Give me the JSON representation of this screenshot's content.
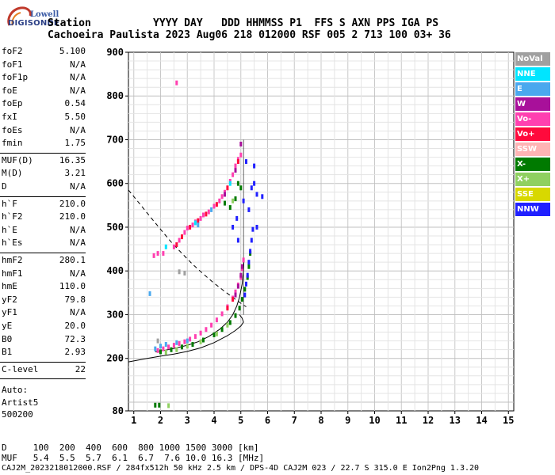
{
  "header": {
    "brand_top": "Lowell",
    "brand_bottom": "DIGISONDE",
    "line1": "Station          YYYY DAY   DDD HHMMSS P1  FFS S AXN PPS IGA PS",
    "line2": "Cachoeira Paulista 2023 Aug06 218 012000 RSF 005 2 713 100 03+ 36"
  },
  "params": {
    "group1": [
      {
        "k": "foF2",
        "v": "5.100"
      },
      {
        "k": "foF1",
        "v": "N/A"
      },
      {
        "k": "foF1p",
        "v": "N/A"
      },
      {
        "k": "foE",
        "v": "N/A"
      },
      {
        "k": "foEp",
        "v": "0.54"
      },
      {
        "k": "fxI",
        "v": "5.50"
      },
      {
        "k": "foEs",
        "v": "N/A"
      },
      {
        "k": "fmin",
        "v": "1.75"
      }
    ],
    "group2": [
      {
        "k": "MUF(D)",
        "v": "16.35"
      },
      {
        "k": "M(D)",
        "v": "3.21"
      },
      {
        "k": "D",
        "v": "N/A"
      }
    ],
    "group3": [
      {
        "k": "h`F",
        "v": "210.0"
      },
      {
        "k": "h`F2",
        "v": "210.0"
      },
      {
        "k": "h`E",
        "v": "N/A"
      },
      {
        "k": "h`Es",
        "v": "N/A"
      }
    ],
    "group4": [
      {
        "k": "hmF2",
        "v": "280.1"
      },
      {
        "k": "hmF1",
        "v": "N/A"
      },
      {
        "k": "hmE",
        "v": "110.0"
      },
      {
        "k": "yF2",
        "v": "79.8"
      },
      {
        "k": "yF1",
        "v": "N/A"
      },
      {
        "k": "yE",
        "v": "20.0"
      },
      {
        "k": "B0",
        "v": "72.3"
      },
      {
        "k": "B1",
        "v": "2.93"
      }
    ],
    "group5": [
      {
        "k": "C-level",
        "v": "22"
      }
    ],
    "auto": [
      "Auto:",
      "Artist5",
      "500200"
    ]
  },
  "legend": [
    {
      "label": "NoVal",
      "color": "#a0a0a0"
    },
    {
      "label": "NNE",
      "color": "#00e5ff"
    },
    {
      "label": "E",
      "color": "#4aa8ee"
    },
    {
      "label": "W",
      "color": "#a8109a"
    },
    {
      "label": "Vo-",
      "color": "#ff40b0"
    },
    {
      "label": "Vo+",
      "color": "#ff0a3c"
    },
    {
      "label": "SSW",
      "color": "#ffb4b4"
    },
    {
      "label": "X-",
      "color": "#007a00"
    },
    {
      "label": "X+",
      "color": "#8fd060"
    },
    {
      "label": "SSE",
      "color": "#d8d800"
    },
    {
      "label": "NNW",
      "color": "#2020ff"
    }
  ],
  "footer": {
    "line1": "D     100  200  400  600  800 1000 1500 3000 [km]",
    "line2": "MUF   5.4  5.5  5.7  6.1  6.7  7.6 10.0 16.3 [MHz]",
    "line3": "CAJ2M_2023218012000.RSF / 284fx512h 50 kHz 2.5 km / DPS-4D CAJ2M 023 / 22.7 S 315.0 E Ion2Png 1.3.20"
  },
  "chart_data": {
    "type": "scatter",
    "title": "",
    "xlabel": "",
    "ylabel": "",
    "xlim": [
      0.8,
      15.2
    ],
    "ylim": [
      80,
      900
    ],
    "xticks": [
      1,
      2,
      3,
      4,
      5,
      6,
      7,
      8,
      9,
      10,
      11,
      12,
      13,
      14,
      15
    ],
    "yticks": [
      80,
      200,
      300,
      400,
      500,
      600,
      700,
      800,
      900
    ],
    "grid": true,
    "series": [
      {
        "name": "Vo-",
        "color": "#ff40b0",
        "points": [
          [
            1.9,
            218
          ],
          [
            2.1,
            222
          ],
          [
            2.3,
            226
          ],
          [
            2.5,
            230
          ],
          [
            2.7,
            234
          ],
          [
            2.9,
            238
          ],
          [
            3.1,
            244
          ],
          [
            3.3,
            250
          ],
          [
            3.5,
            258
          ],
          [
            3.7,
            266
          ],
          [
            3.9,
            276
          ],
          [
            4.1,
            288
          ],
          [
            4.3,
            302
          ],
          [
            4.5,
            318
          ],
          [
            4.7,
            338
          ],
          [
            4.8,
            352
          ],
          [
            4.9,
            368
          ],
          [
            5.0,
            385
          ],
          [
            5.05,
            405
          ],
          [
            5.1,
            425
          ],
          [
            2.1,
            440
          ],
          [
            2.5,
            455
          ],
          [
            2.7,
            470
          ],
          [
            2.9,
            488
          ],
          [
            3.2,
            505
          ],
          [
            3.5,
            520
          ],
          [
            3.8,
            535
          ],
          [
            4.0,
            548
          ],
          [
            4.2,
            560
          ],
          [
            4.4,
            580
          ],
          [
            4.6,
            605
          ],
          [
            4.8,
            640
          ],
          [
            5.0,
            665
          ],
          [
            1.75,
            435
          ],
          [
            1.9,
            440
          ],
          [
            3.0,
            498
          ],
          [
            3.3,
            512
          ],
          [
            3.6,
            528
          ],
          [
            4.3,
            570
          ],
          [
            4.7,
            620
          ],
          [
            4.9,
            655
          ],
          [
            2.6,
            830
          ]
        ]
      },
      {
        "name": "Vo+",
        "color": "#ff0a3c",
        "points": [
          [
            2.6,
            460
          ],
          [
            2.8,
            478
          ],
          [
            3.1,
            500
          ],
          [
            3.4,
            515
          ],
          [
            3.7,
            530
          ],
          [
            4.1,
            552
          ],
          [
            4.5,
            590
          ],
          [
            4.9,
            650
          ],
          [
            4.5,
            315
          ],
          [
            4.7,
            335
          ]
        ]
      },
      {
        "name": "W",
        "color": "#a8109a",
        "points": [
          [
            4.8,
            345
          ],
          [
            4.9,
            365
          ],
          [
            5.0,
            390
          ],
          [
            5.05,
            410
          ],
          [
            4.4,
            575
          ],
          [
            4.8,
            630
          ],
          [
            5.0,
            690
          ]
        ]
      },
      {
        "name": "E",
        "color": "#4aa8ee",
        "points": [
          [
            1.8,
            222
          ],
          [
            2.0,
            228
          ],
          [
            2.2,
            232
          ],
          [
            2.6,
            236
          ],
          [
            3.0,
            240
          ],
          [
            3.4,
            505
          ],
          [
            3.9,
            540
          ],
          [
            1.6,
            348
          ]
        ]
      },
      {
        "name": "NNE",
        "color": "#00e5ff",
        "points": [
          [
            2.2,
            455
          ],
          [
            3.3,
            510
          ],
          [
            4.6,
            600
          ]
        ]
      },
      {
        "name": "X-",
        "color": "#007a00",
        "points": [
          [
            2.0,
            215
          ],
          [
            2.4,
            220
          ],
          [
            2.8,
            226
          ],
          [
            3.2,
            232
          ],
          [
            3.6,
            242
          ],
          [
            4.0,
            254
          ],
          [
            4.3,
            266
          ],
          [
            4.6,
            282
          ],
          [
            4.8,
            298
          ],
          [
            4.95,
            315
          ],
          [
            5.05,
            335
          ],
          [
            5.15,
            358
          ],
          [
            5.25,
            385
          ],
          [
            5.3,
            410
          ],
          [
            5.35,
            440
          ],
          [
            4.6,
            545
          ],
          [
            4.8,
            565
          ],
          [
            5.0,
            590
          ],
          [
            1.8,
            93
          ],
          [
            1.95,
            93
          ],
          [
            4.4,
            555
          ],
          [
            4.9,
            600
          ]
        ]
      },
      {
        "name": "X+",
        "color": "#8fd060",
        "points": [
          [
            2.2,
            214
          ],
          [
            2.6,
            220
          ],
          [
            3.0,
            228
          ],
          [
            3.5,
            238
          ],
          [
            4.1,
            256
          ],
          [
            4.5,
            276
          ],
          [
            2.3,
            92
          ],
          [
            4.7,
            560
          ]
        ]
      },
      {
        "name": "NNW",
        "color": "#2020ff",
        "points": [
          [
            5.3,
            420
          ],
          [
            5.35,
            445
          ],
          [
            5.4,
            470
          ],
          [
            5.45,
            495
          ],
          [
            5.25,
            390
          ],
          [
            5.2,
            370
          ],
          [
            5.15,
            345
          ],
          [
            5.3,
            540
          ],
          [
            5.4,
            590
          ],
          [
            5.5,
            600
          ],
          [
            5.6,
            575
          ],
          [
            5.2,
            650
          ],
          [
            5.1,
            560
          ],
          [
            4.9,
            470
          ],
          [
            4.85,
            520
          ],
          [
            5.5,
            640
          ],
          [
            5.8,
            570
          ],
          [
            5.6,
            500
          ],
          [
            4.7,
            500
          ]
        ]
      },
      {
        "name": "NoVal",
        "color": "#a0a0a0",
        "points": [
          [
            1.9,
            240
          ],
          [
            2.7,
            398
          ],
          [
            2.9,
            395
          ]
        ]
      }
    ],
    "curves": [
      {
        "name": "profile",
        "style": "solid",
        "points": [
          [
            0.8,
            192
          ],
          [
            1.5,
            200
          ],
          [
            2.0,
            205
          ],
          [
            2.5,
            210
          ],
          [
            3.0,
            216
          ],
          [
            3.5,
            224
          ],
          [
            4.0,
            236
          ],
          [
            4.5,
            252
          ],
          [
            4.8,
            264
          ],
          [
            5.0,
            274
          ],
          [
            5.1,
            283
          ],
          [
            5.05,
            292
          ],
          [
            4.95,
            300
          ]
        ]
      },
      {
        "name": "fit",
        "style": "solid",
        "points": [
          [
            1.8,
            215
          ],
          [
            2.2,
            219
          ],
          [
            2.6,
            224
          ],
          [
            3.0,
            230
          ],
          [
            3.4,
            238
          ],
          [
            3.8,
            250
          ],
          [
            4.2,
            266
          ],
          [
            4.5,
            283
          ],
          [
            4.7,
            300
          ],
          [
            4.85,
            320
          ],
          [
            4.95,
            340
          ],
          [
            5.05,
            370
          ],
          [
            5.1,
            400
          ],
          [
            5.12,
            430
          ]
        ]
      },
      {
        "name": "boundary",
        "style": "dashed",
        "points": [
          [
            0.8,
            585
          ],
          [
            1.2,
            555
          ],
          [
            1.6,
            525
          ],
          [
            2.0,
            495
          ],
          [
            2.4,
            466
          ],
          [
            2.8,
            440
          ],
          [
            3.2,
            415
          ],
          [
            3.6,
            393
          ],
          [
            4.0,
            372
          ],
          [
            4.4,
            353
          ],
          [
            4.8,
            335
          ],
          [
            5.0,
            326
          ],
          [
            5.2,
            318
          ]
        ]
      }
    ],
    "marker_line": {
      "x": 5.1,
      "y0": 300,
      "y1": 700
    }
  }
}
